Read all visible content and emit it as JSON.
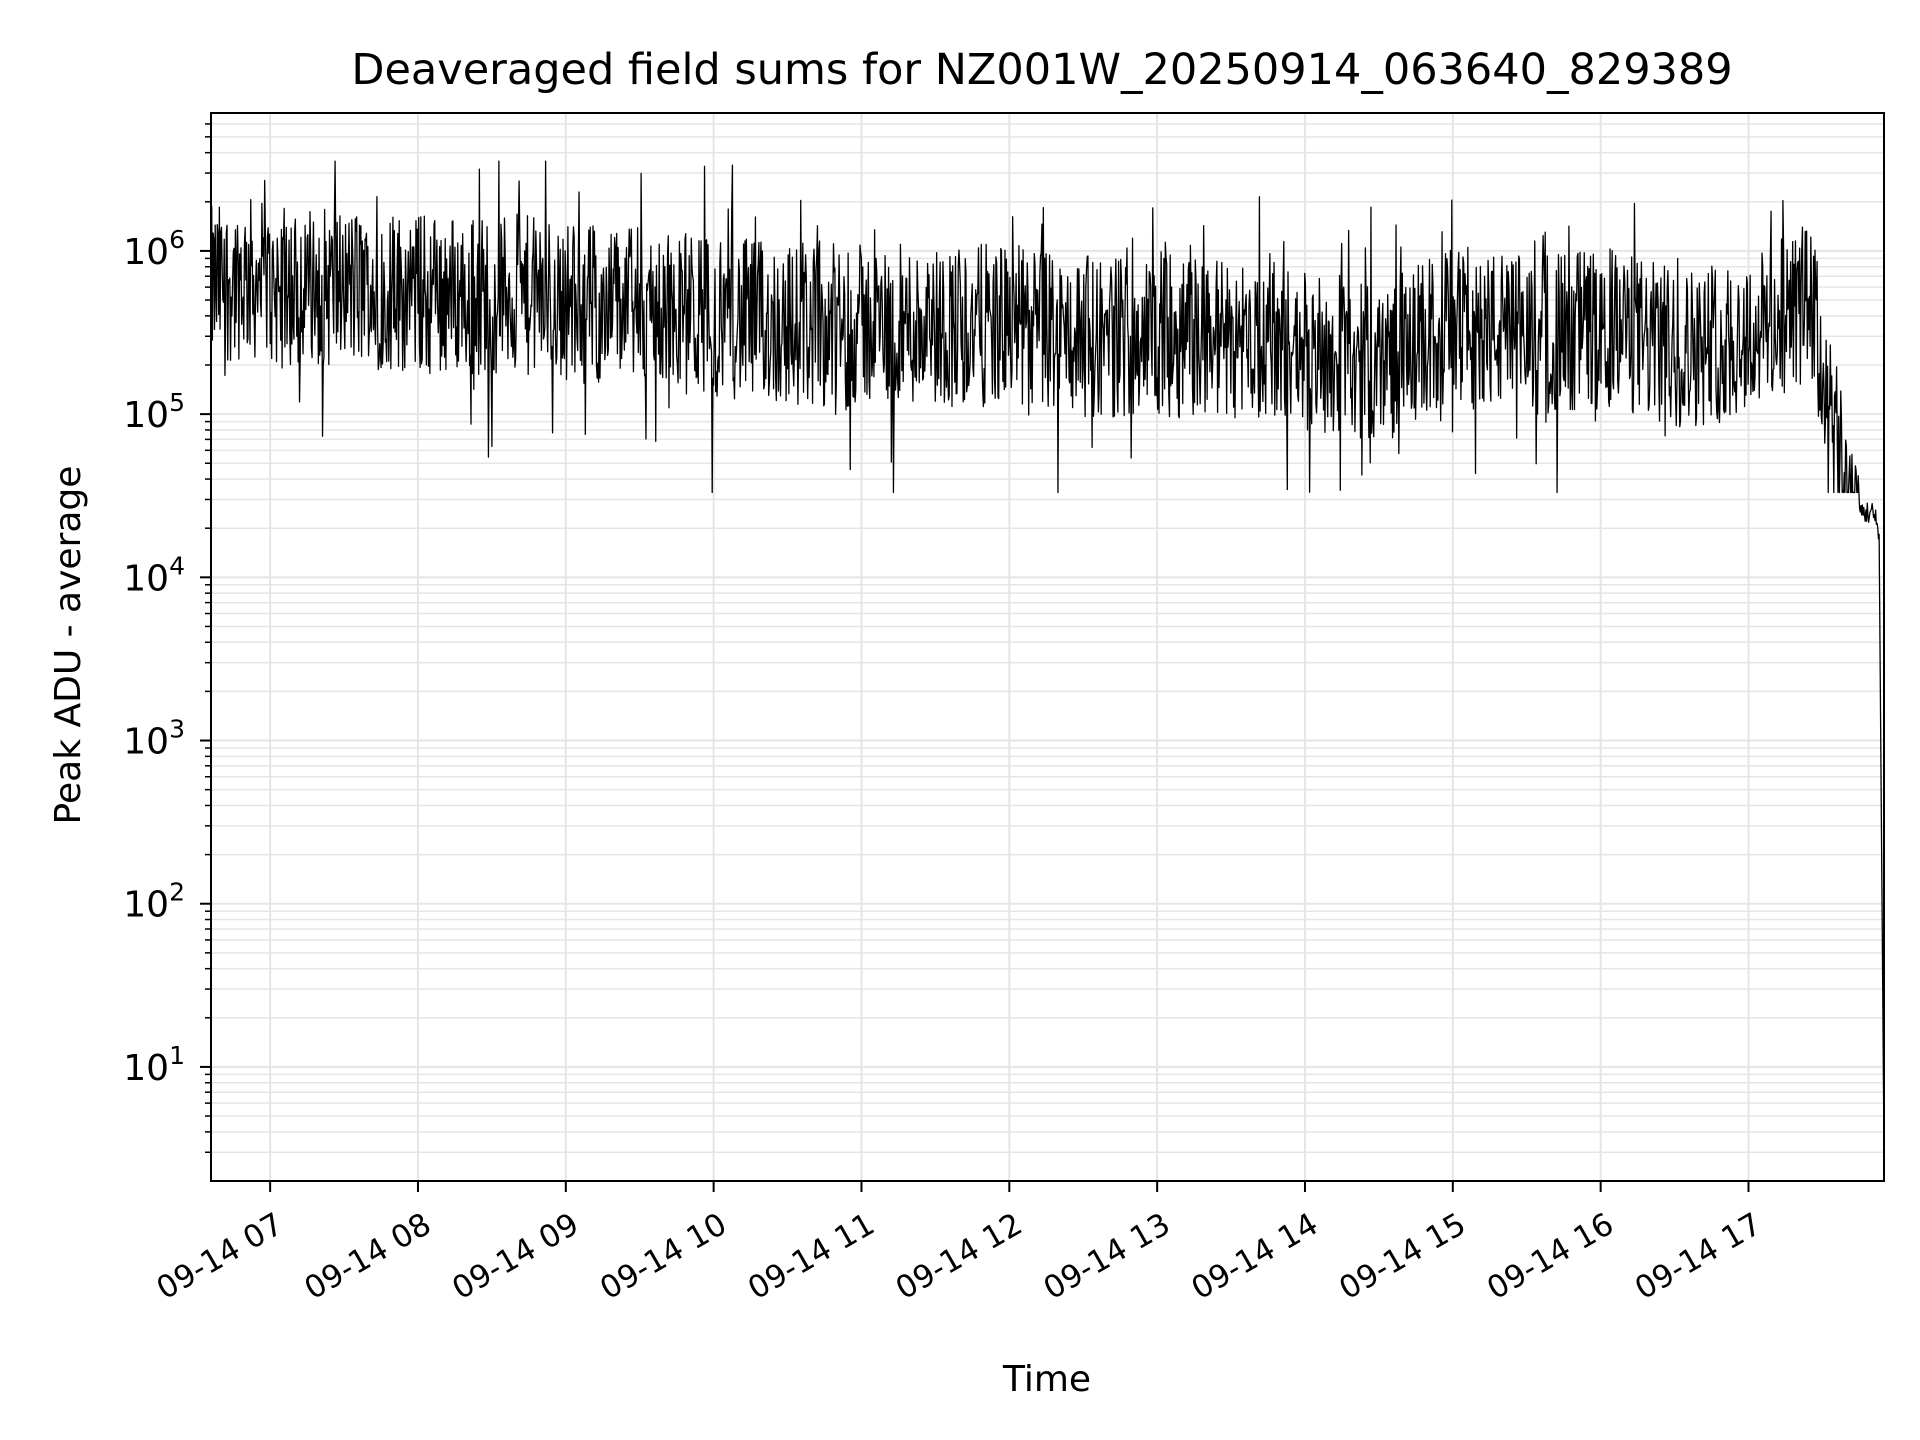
{
  "chart_data": {
    "type": "line",
    "title": "Deaveraged field sums for NZ001W_20250914_063640_829389",
    "xlabel": "Time",
    "ylabel": "Peak ADU - average",
    "yscale": "log",
    "grid": true,
    "grid_minor": true,
    "legend": "none",
    "line_color": "#000000",
    "grid_color": "#e5e5e5",
    "xlim": [
      "2025-09-14 06:36",
      "2025-09-14 17:55"
    ],
    "ylim": [
      2,
      7000000
    ],
    "x_ticks": [
      {
        "t": "2025-09-14 07:00",
        "label": "09-14 07"
      },
      {
        "t": "2025-09-14 08:00",
        "label": "09-14 08"
      },
      {
        "t": "2025-09-14 09:00",
        "label": "09-14 09"
      },
      {
        "t": "2025-09-14 10:00",
        "label": "09-14 10"
      },
      {
        "t": "2025-09-14 11:00",
        "label": "09-14 11"
      },
      {
        "t": "2025-09-14 12:00",
        "label": "09-14 12"
      },
      {
        "t": "2025-09-14 13:00",
        "label": "09-14 13"
      },
      {
        "t": "2025-09-14 14:00",
        "label": "09-14 14"
      },
      {
        "t": "2025-09-14 15:00",
        "label": "09-14 15"
      },
      {
        "t": "2025-09-14 16:00",
        "label": "09-14 16"
      },
      {
        "t": "2025-09-14 17:00",
        "label": "09-14 17"
      }
    ],
    "y_ticks": [
      {
        "v": 10,
        "base": "10",
        "exp": "1"
      },
      {
        "v": 100,
        "base": "10",
        "exp": "2"
      },
      {
        "v": 1000,
        "base": "10",
        "exp": "3"
      },
      {
        "v": 10000,
        "base": "10",
        "exp": "4"
      },
      {
        "v": 100000,
        "base": "10",
        "exp": "5"
      },
      {
        "v": 1000000,
        "base": "10",
        "exp": "6"
      }
    ],
    "series": [
      {
        "x": [
          "2025-09-14 06:36",
          "2025-09-14 06:50",
          "2025-09-14 07:00",
          "2025-09-14 07:30",
          "2025-09-14 08:00",
          "2025-09-14 08:30",
          "2025-09-14 09:00",
          "2025-09-14 09:30",
          "2025-09-14 10:00",
          "2025-09-14 10:30",
          "2025-09-14 11:00",
          "2025-09-14 11:30",
          "2025-09-14 12:00",
          "2025-09-14 12:30",
          "2025-09-14 13:00",
          "2025-09-14 13:30",
          "2025-09-14 14:00",
          "2025-09-14 14:30",
          "2025-09-14 15:00",
          "2025-09-14 15:30",
          "2025-09-14 16:00",
          "2025-09-14 16:30",
          "2025-09-14 17:00",
          "2025-09-14 17:15",
          "2025-09-14 17:25",
          "2025-09-14 17:35",
          "2025-09-14 17:40",
          "2025-09-14 17:45",
          "2025-09-14 17:50",
          "2025-09-14 17:53",
          "2025-09-14 17:55"
        ],
        "y": [
          600000,
          700000,
          600000,
          600000,
          550000,
          550000,
          500000,
          450000,
          400000,
          350000,
          350000,
          350000,
          350000,
          300000,
          300000,
          300000,
          250000,
          200000,
          350000,
          300000,
          350000,
          250000,
          300000,
          400000,
          500000,
          70000,
          30000,
          25000,
          25000,
          20000,
          3
        ]
      }
    ]
  }
}
